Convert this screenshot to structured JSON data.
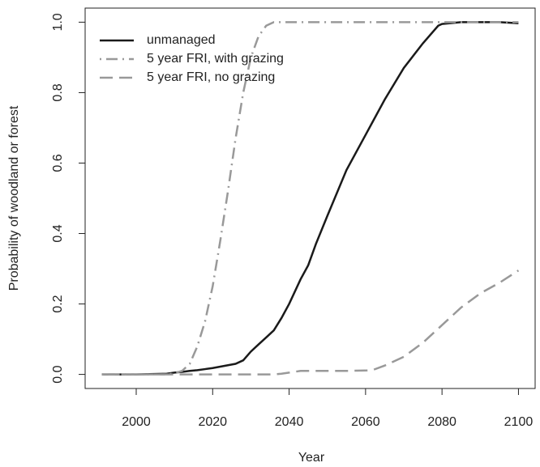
{
  "chart_data": {
    "type": "line",
    "xlabel": "Year",
    "ylabel": "Probability of woodland or forest",
    "x": [
      1991,
      2000,
      2008,
      2010,
      2012,
      2014,
      2016,
      2018,
      2020,
      2022,
      2024,
      2026,
      2028,
      2030,
      2032,
      2034,
      2036,
      2038,
      2040,
      2043,
      2045,
      2047,
      2050,
      2055,
      2060,
      2062,
      2065,
      2070,
      2075,
      2079,
      2080,
      2085,
      2090,
      2095,
      2100
    ],
    "series": [
      {
        "name": "unmanaged",
        "color": "#1a1a1a",
        "linestyle": "solid",
        "values": [
          0,
          0,
          0.002,
          0.005,
          0.007,
          0.01,
          0.012,
          0.015,
          0.018,
          0.022,
          0.026,
          0.03,
          0.04,
          0.065,
          0.085,
          0.105,
          0.125,
          0.16,
          0.2,
          0.27,
          0.31,
          0.37,
          0.45,
          0.58,
          0.68,
          0.72,
          0.78,
          0.87,
          0.94,
          0.99,
          0.995,
          1.0,
          1.0,
          1.0,
          0.997
        ]
      },
      {
        "name": "5 year FRI, with grazing",
        "color": "#999999",
        "linestyle": "dashdot",
        "values": [
          0,
          0,
          0,
          0.003,
          0.01,
          0.03,
          0.08,
          0.15,
          0.25,
          0.38,
          0.52,
          0.67,
          0.8,
          0.9,
          0.96,
          0.99,
          1.0,
          1.0,
          1.0,
          1.0,
          1.0,
          1.0,
          1.0,
          1.0,
          1.0,
          1.0,
          1.0,
          1.0,
          1.0,
          1.0,
          1.0,
          1.0,
          1.0,
          1.0,
          1.0
        ]
      },
      {
        "name": "5 year FRI, no grazing",
        "color": "#999999",
        "linestyle": "dashed",
        "values": [
          0,
          0,
          0,
          0,
          0,
          0,
          0,
          0,
          0,
          0,
          0,
          0,
          0,
          0,
          0,
          0,
          0,
          0.002,
          0.005,
          0.01,
          0.01,
          0.01,
          0.01,
          0.01,
          0.011,
          0.013,
          0.025,
          0.05,
          0.09,
          0.13,
          0.14,
          0.19,
          0.23,
          0.26,
          0.295
        ]
      }
    ],
    "xlim": [
      1986.64,
      2104.36
    ],
    "xticks": [
      2000,
      2020,
      2040,
      2060,
      2080,
      2100
    ],
    "ylim": [
      -0.04,
      1.04
    ],
    "yticks": [
      {
        "value": 0,
        "label": "0.0"
      },
      0.2,
      0.4,
      0.6,
      0.8,
      {
        "value": 1,
        "label": "1.0"
      }
    ],
    "legend": "top-left"
  }
}
